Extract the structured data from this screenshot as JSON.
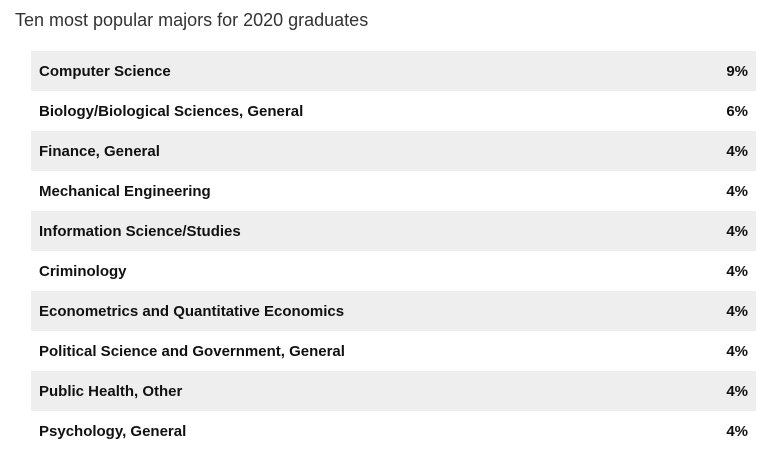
{
  "title": "Ten most popular majors for 2020 graduates",
  "majors": [
    {
      "name": "Computer Science",
      "percent": "9%"
    },
    {
      "name": "Biology/Biological Sciences, General",
      "percent": "6%"
    },
    {
      "name": "Finance, General",
      "percent": "4%"
    },
    {
      "name": "Mechanical Engineering",
      "percent": "4%"
    },
    {
      "name": "Information Science/Studies",
      "percent": "4%"
    },
    {
      "name": "Criminology",
      "percent": "4%"
    },
    {
      "name": "Econometrics and Quantitative Economics",
      "percent": "4%"
    },
    {
      "name": "Political Science and Government, General",
      "percent": "4%"
    },
    {
      "name": "Public Health, Other",
      "percent": "4%"
    },
    {
      "name": "Psychology, General",
      "percent": "4%"
    }
  ],
  "colors": {
    "row_shaded": "#eeeeee",
    "row_plain": "#ffffff",
    "text": "#111111"
  }
}
